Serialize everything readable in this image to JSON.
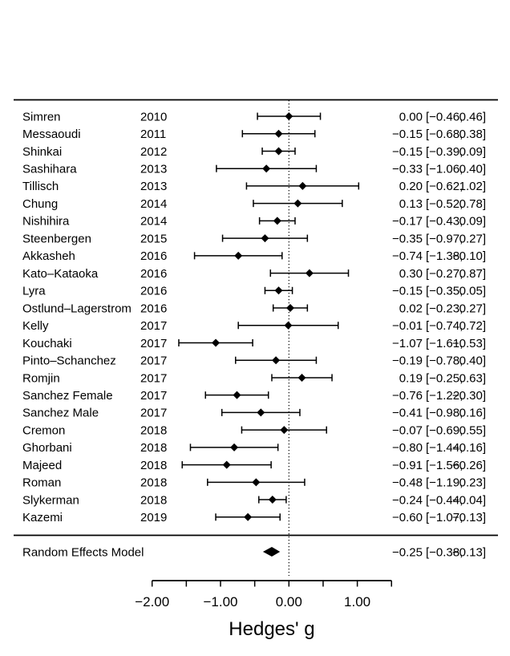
{
  "figure": {
    "background": "#ffffff",
    "ink": "#000000"
  },
  "chart_data": {
    "type": "forest",
    "title": "",
    "xlabel": "Hedges' g",
    "xlim": [
      -2.0,
      1.5
    ],
    "reference_line": 0,
    "x_ticks_all": [
      -2.0,
      -1.5,
      -1.0,
      -0.5,
      0.0,
      0.5,
      1.0,
      1.5
    ],
    "x_ticks_labeled": [
      -2.0,
      -1.0,
      0.0,
      1.0
    ],
    "x_tick_labels": [
      "−2.00",
      "−1.00",
      "0.00",
      "1.00"
    ],
    "annotation_format": "est [ci_lb, ci_ub]",
    "grid": "off",
    "legend": "none",
    "studies": [
      {
        "label": "Simren",
        "year": "2010",
        "est": 0.0,
        "ci_lb": -0.46,
        "ci_ub": 0.46
      },
      {
        "label": "Messaoudi",
        "year": "2011",
        "est": -0.15,
        "ci_lb": -0.68,
        "ci_ub": 0.38
      },
      {
        "label": "Shinkai",
        "year": "2012",
        "est": -0.15,
        "ci_lb": -0.39,
        "ci_ub": 0.09
      },
      {
        "label": "Sashihara",
        "year": "2013",
        "est": -0.33,
        "ci_lb": -1.06,
        "ci_ub": 0.4
      },
      {
        "label": "Tillisch",
        "year": "2013",
        "est": 0.2,
        "ci_lb": -0.62,
        "ci_ub": 1.02
      },
      {
        "label": "Chung",
        "year": "2014",
        "est": 0.13,
        "ci_lb": -0.52,
        "ci_ub": 0.78
      },
      {
        "label": "Nishihira",
        "year": "2014",
        "est": -0.17,
        "ci_lb": -0.43,
        "ci_ub": 0.09
      },
      {
        "label": "Steenbergen",
        "year": "2015",
        "est": -0.35,
        "ci_lb": -0.97,
        "ci_ub": 0.27
      },
      {
        "label": "Akkasheh",
        "year": "2016",
        "est": -0.74,
        "ci_lb": -1.38,
        "ci_ub": -0.1
      },
      {
        "label": "Kato–Kataoka",
        "year": "2016",
        "est": 0.3,
        "ci_lb": -0.27,
        "ci_ub": 0.87
      },
      {
        "label": "Lyra",
        "year": "2016",
        "est": -0.15,
        "ci_lb": -0.35,
        "ci_ub": 0.05
      },
      {
        "label": "Ostlund–Lagerstrom",
        "year": "2016",
        "est": 0.02,
        "ci_lb": -0.23,
        "ci_ub": 0.27
      },
      {
        "label": "Kelly",
        "year": "2017",
        "est": -0.01,
        "ci_lb": -0.74,
        "ci_ub": 0.72
      },
      {
        "label": "Kouchaki",
        "year": "2017",
        "est": -1.07,
        "ci_lb": -1.61,
        "ci_ub": -0.53
      },
      {
        "label": "Pinto–Schanchez",
        "year": "2017",
        "est": -0.19,
        "ci_lb": -0.78,
        "ci_ub": 0.4
      },
      {
        "label": "Romjin",
        "year": "2017",
        "est": 0.19,
        "ci_lb": -0.25,
        "ci_ub": 0.63
      },
      {
        "label": "Sanchez Female",
        "year": "2017",
        "est": -0.76,
        "ci_lb": -1.22,
        "ci_ub": -0.3
      },
      {
        "label": "Sanchez Male",
        "year": "2017",
        "est": -0.41,
        "ci_lb": -0.98,
        "ci_ub": 0.16
      },
      {
        "label": "Cremon",
        "year": "2018",
        "est": -0.07,
        "ci_lb": -0.69,
        "ci_ub": 0.55
      },
      {
        "label": "Ghorbani",
        "year": "2018",
        "est": -0.8,
        "ci_lb": -1.44,
        "ci_ub": -0.16
      },
      {
        "label": "Majeed",
        "year": "2018",
        "est": -0.91,
        "ci_lb": -1.56,
        "ci_ub": -0.26
      },
      {
        "label": "Roman",
        "year": "2018",
        "est": -0.48,
        "ci_lb": -1.19,
        "ci_ub": 0.23
      },
      {
        "label": "Slykerman",
        "year": "2018",
        "est": -0.24,
        "ci_lb": -0.44,
        "ci_ub": -0.04
      },
      {
        "label": "Kazemi",
        "year": "2019",
        "est": -0.6,
        "ci_lb": -1.07,
        "ci_ub": -0.13
      }
    ],
    "summary": {
      "label": "Random Effects Model",
      "est": -0.25,
      "ci_lb": -0.38,
      "ci_ub": -0.13
    }
  }
}
